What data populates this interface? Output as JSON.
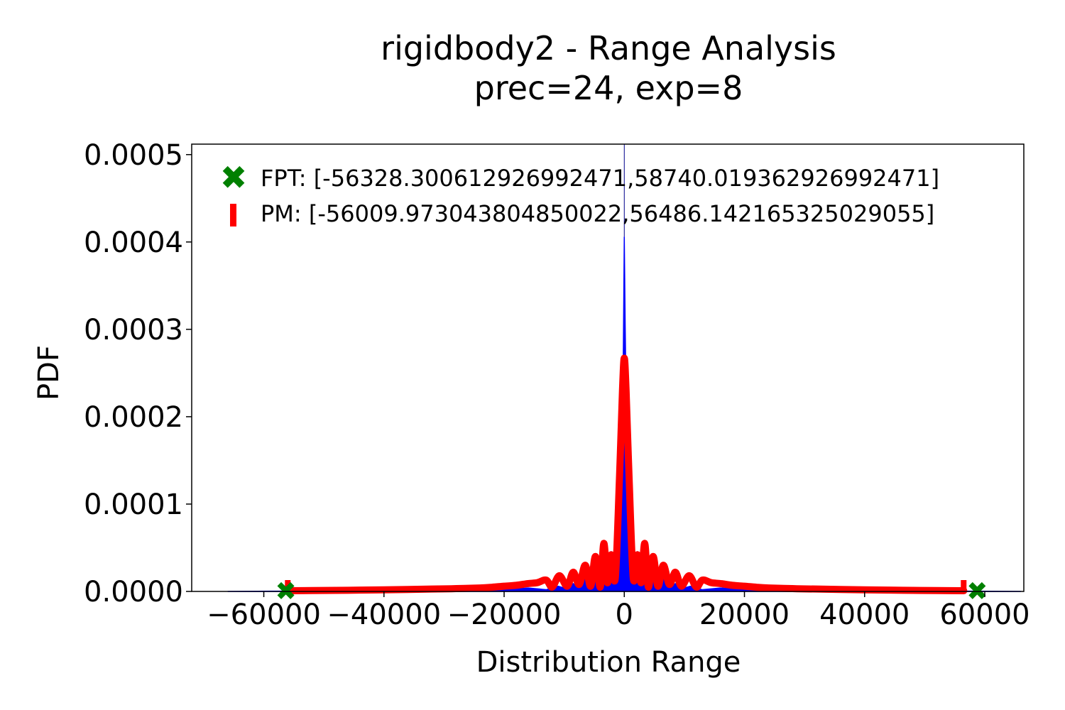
{
  "chart_data": {
    "type": "line",
    "title": "rigidbody2 - Range Analysis",
    "subtitle": "prec=24, exp=8",
    "xlabel": "Distribution Range",
    "ylabel": "PDF",
    "xlim": [
      -72000,
      66500
    ],
    "ylim": [
      0,
      0.000512
    ],
    "x_ticks": [
      -60000,
      -40000,
      -20000,
      0,
      20000,
      40000,
      60000
    ],
    "x_tick_labels": [
      "−60000",
      "−40000",
      "−20000",
      "0",
      "20000",
      "40000",
      "60000"
    ],
    "y_ticks": [
      0,
      0.0001,
      0.0002,
      0.0003,
      0.0004,
      0.0005
    ],
    "y_tick_labels": [
      "0.0000",
      "0.0001",
      "0.0002",
      "0.0003",
      "0.0004",
      "0.0005"
    ],
    "grid": false,
    "legend_position": "top-left",
    "colors": {
      "histogram": "#0000ff",
      "pm_curve": "#ff0000",
      "fpt_marker": "#008000",
      "pm_marker": "#ff0000"
    },
    "legend": [
      {
        "marker": "X",
        "color": "#008000",
        "label": "FPT: [-56328.300612926992471,58740.019362926992471]"
      },
      {
        "marker": "|",
        "color": "#ff0000",
        "label": "PM: [-56009.973043804850022,56486.142165325029055]"
      }
    ],
    "fpt_range": [
      -56328.30061292699,
      58740.01936292699
    ],
    "pm_range": [
      -56009.97304380485,
      56486.14216532503
    ],
    "series": [
      {
        "name": "PM",
        "kind": "line",
        "x": [
          -56000,
          -52000,
          -48000,
          -44000,
          -40000,
          -36000,
          -32000,
          -28000,
          -24000,
          -22000,
          -20000,
          -18000,
          -16000,
          -14500,
          -13000,
          -12000,
          -10800,
          -9500,
          -8500,
          -7500,
          -6500,
          -5600,
          -4800,
          -4000,
          -3400,
          -2800,
          -2200,
          -1500,
          -800,
          -300,
          0,
          300,
          800,
          1500,
          2200,
          2800,
          3400,
          4000,
          4800,
          5600,
          6500,
          7500,
          8500,
          9500,
          10800,
          12000,
          13000,
          14500,
          16000,
          18000,
          20000,
          22000,
          24000,
          28000,
          32000,
          36000,
          40000,
          44000,
          48000,
          52000,
          56500
        ],
        "y": [
          8e-07,
          1e-06,
          1.2e-06,
          1.5e-06,
          1.8e-06,
          2.2e-06,
          2.7e-06,
          3.2e-06,
          4e-06,
          4.8e-06,
          6e-06,
          7e-06,
          9e-06,
          1e-05,
          1.3e-05,
          5e-06,
          1.8e-05,
          6e-06,
          2.2e-05,
          8e-06,
          3e-05,
          6e-06,
          4e-05,
          5e-06,
          5.5e-05,
          1e-05,
          4.2e-05,
          1.5e-05,
          0.00013,
          0.00023,
          0.000267,
          0.00023,
          0.00013,
          1.5e-05,
          4.2e-05,
          1e-05,
          5.5e-05,
          5e-06,
          4e-05,
          6e-06,
          3e-05,
          8e-06,
          2.2e-05,
          6e-06,
          1.8e-05,
          5e-06,
          1.3e-05,
          1e-05,
          9e-06,
          7e-06,
          6e-06,
          4.8e-06,
          4e-06,
          3.2e-06,
          2.7e-06,
          2.2e-06,
          1.8e-06,
          1.5e-06,
          1.2e-06,
          1e-06,
          8e-07
        ]
      },
      {
        "name": "Histogram",
        "kind": "area",
        "x": [
          -66000,
          -58000,
          -50000,
          -40000,
          -30000,
          -20000,
          -16000,
          -13000,
          -11000,
          -9500,
          -8500,
          -7500,
          -6500,
          -5600,
          -4800,
          -4000,
          -3400,
          -2800,
          -2200,
          -1500,
          -800,
          -400,
          -150,
          0,
          150,
          400,
          800,
          1500,
          2200,
          2800,
          3400,
          4000,
          4800,
          5600,
          6500,
          7500,
          8500,
          9500,
          11000,
          13000,
          16000,
          20000,
          30000,
          40000,
          50000,
          58000,
          66000
        ],
        "y": [
          0.0,
          3e-07,
          5e-07,
          8e-07,
          1.2e-06,
          1.8e-06,
          4e-06,
          2e-06,
          6e-06,
          3e-06,
          9e-06,
          4e-06,
          1.4e-05,
          4e-06,
          2e-05,
          3e-06,
          3e-05,
          8e-06,
          4.6e-05,
          1e-05,
          0.0001,
          0.00017,
          0.00028,
          0.000406,
          0.000305,
          0.00017,
          0.0001,
          1e-05,
          4.6e-05,
          8e-06,
          3e-05,
          3e-06,
          2e-05,
          4e-06,
          1.4e-05,
          4e-06,
          9e-06,
          3e-06,
          6e-06,
          2e-06,
          4e-06,
          1.8e-06,
          1.2e-06,
          8e-07,
          5e-07,
          3e-07,
          0.0
        ]
      }
    ]
  }
}
